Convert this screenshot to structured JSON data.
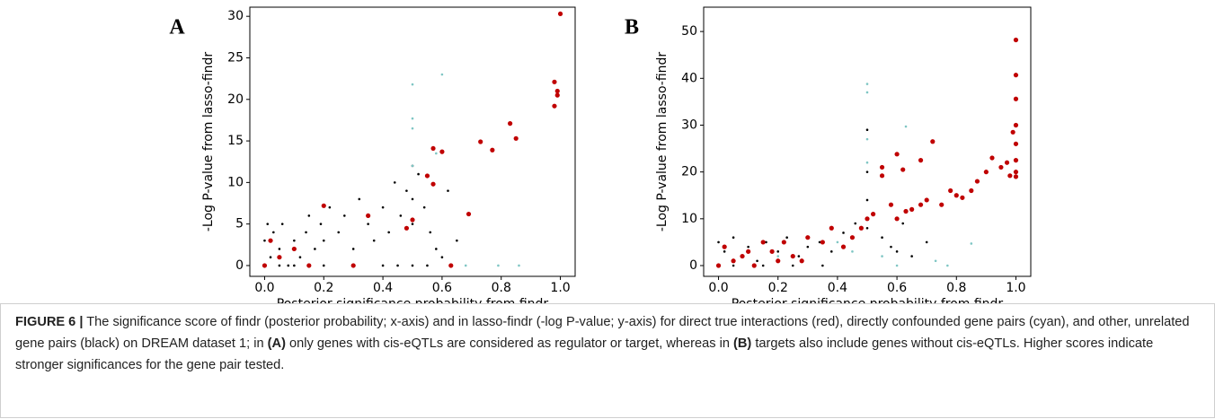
{
  "chart_data": [
    {
      "type": "scatter",
      "panel_label": "A",
      "x_label": "Posterior significance probability from findr",
      "y_label": "-Log P-value from lasso-findr",
      "xlim": [
        -0.05,
        1.05
      ],
      "ylim": [
        -1.3,
        31.1
      ],
      "xticks": [
        {
          "value": 0,
          "label": "0.0"
        },
        0.2,
        0.4,
        0.6,
        0.8,
        {
          "value": 1,
          "label": "1.0"
        }
      ],
      "yticks": [
        0,
        5,
        10,
        15,
        20,
        25,
        30
      ],
      "series": [
        {
          "color": "#000000",
          "x": [
            0,
            0,
            0.01,
            0.02,
            0.03,
            0.05,
            0.06,
            0.08,
            0.1,
            0.12,
            0.14,
            0.15,
            0.17,
            0.19,
            0.2,
            0.22,
            0.25,
            0.27,
            0.3,
            0.32,
            0.35,
            0.37,
            0.4,
            0.42,
            0.44,
            0.46,
            0.48,
            0.5,
            0.5,
            0.5,
            0.5,
            0.52,
            0.54,
            0.56,
            0.58,
            0.6,
            0.62,
            0.65,
            0.05,
            0.1,
            0.15,
            0.2,
            0.3,
            0.4,
            0.45,
            0.55
          ],
          "values": [
            0,
            3,
            5,
            1,
            4,
            2,
            5,
            0,
            3,
            1,
            4,
            6,
            2,
            5,
            3,
            7,
            4,
            6,
            2,
            8,
            5,
            3,
            7,
            4,
            10,
            6,
            9,
            12,
            8,
            5,
            0,
            11,
            7,
            4,
            2,
            1,
            9,
            3,
            0,
            0,
            0,
            0,
            0,
            0,
            0,
            0
          ]
        },
        {
          "color": "#7fc6c4",
          "x": [
            0.5,
            0.5,
            0.5,
            0.6,
            0.5,
            0.68,
            0.79,
            0.86,
            0.58,
            0.3
          ],
          "values": [
            21.8,
            17.7,
            16.5,
            23,
            12,
            0,
            0,
            0,
            13.5,
            0
          ]
        },
        {
          "color": "#c00000",
          "x": [
            0.98,
            0.99,
            0.99,
            1.0,
            0.98,
            0.83,
            0.85,
            0.73,
            0.77,
            0.57,
            0.6,
            0.55,
            0.57,
            0.69,
            0.48,
            0.5,
            0.2,
            0.35,
            0.05,
            0.1,
            0.0,
            0.15,
            0.3,
            0.63,
            0.02
          ],
          "values": [
            19.2,
            20.5,
            21,
            30.3,
            22.1,
            17.1,
            15.3,
            14.9,
            13.9,
            14.1,
            13.7,
            10.8,
            9.8,
            6.2,
            4.5,
            5.5,
            7.2,
            6,
            1,
            2,
            0,
            0,
            0,
            0,
            3
          ]
        }
      ]
    },
    {
      "type": "scatter",
      "panel_label": "B",
      "x_label": "Posterior significance probability from findr",
      "y_label": "-Log P-value from lasso-findr",
      "xlim": [
        -0.05,
        1.05
      ],
      "ylim": [
        -2.3,
        55.2
      ],
      "xticks": [
        {
          "value": 0,
          "label": "0.0"
        },
        0.2,
        0.4,
        0.6,
        0.8,
        {
          "value": 1,
          "label": "1.0"
        }
      ],
      "yticks": [
        0,
        10,
        20,
        30,
        40,
        50
      ],
      "series": [
        {
          "color": "#000000",
          "x": [
            0,
            0.02,
            0.05,
            0.08,
            0.1,
            0.13,
            0.16,
            0.2,
            0.23,
            0.27,
            0.3,
            0.34,
            0.38,
            0.42,
            0.46,
            0.5,
            0.5,
            0.5,
            0.5,
            0.52,
            0.55,
            0.58,
            0.6,
            0.62,
            0.65,
            0.7,
            0.05,
            0.15,
            0.25,
            0.35
          ],
          "values": [
            5,
            3,
            6,
            2,
            4,
            1,
            5,
            3,
            6,
            2,
            4,
            5,
            3,
            7,
            9,
            29,
            20,
            14,
            8,
            11,
            6,
            4,
            3,
            9,
            2,
            5,
            0,
            0,
            0,
            0
          ]
        },
        {
          "color": "#7fc6c4",
          "x": [
            0.5,
            0.5,
            0.5,
            0.5,
            0.63,
            0.85,
            0.73,
            0.77,
            0.55,
            0.6,
            0.45,
            0.4,
            0.2
          ],
          "values": [
            38.8,
            37,
            27,
            22,
            29.7,
            4.7,
            1,
            0,
            2,
            0,
            3,
            5,
            2
          ]
        },
        {
          "color": "#c00000",
          "x": [
            1,
            1,
            1,
            1,
            1,
            1,
            1,
            1,
            0.99,
            0.98,
            0.97,
            0.95,
            0.92,
            0.9,
            0.87,
            0.85,
            0.82,
            0.8,
            0.78,
            0.75,
            0.72,
            0.7,
            0.68,
            0.65,
            0.63,
            0.6,
            0.58,
            0.55,
            0.52,
            0.5,
            0.48,
            0.45,
            0.42,
            0.38,
            0.35,
            0.3,
            0.25,
            0.2,
            0.15,
            0.1,
            0.05,
            0,
            0.02,
            0.08,
            0.12,
            0.18,
            0.22,
            0.28,
            0.55,
            0.6,
            0.62,
            0.68
          ],
          "values": [
            48.2,
            40.7,
            35.6,
            30,
            26,
            22.5,
            20,
            19,
            28.5,
            19.2,
            22,
            21,
            23,
            20,
            18,
            16,
            14.5,
            15,
            16,
            13,
            26.5,
            14,
            13,
            12,
            11.6,
            10,
            13,
            21,
            11,
            10,
            8,
            6,
            4,
            8,
            5,
            6,
            2,
            1,
            5,
            3,
            1,
            0,
            4,
            2,
            0,
            3,
            5,
            1,
            19.2,
            23.8,
            20.5,
            22.5
          ]
        }
      ]
    }
  ],
  "caption": {
    "label": "FIGURE 6 |",
    "parts": [
      "The significance score of findr (posterior probability; x-axis) and in lasso-findr (-log P-value; y-axis) for direct true interactions (red), directly confounded gene pairs (cyan), and other, unrelated gene pairs (black) on DREAM dataset 1; in ",
      "(A)",
      " only genes with cis-eQTLs are considered as regulator or target, whereas in ",
      "(B)",
      " targets also include genes without cis-eQTLs. Higher scores indicate stronger significances for the gene pair tested."
    ]
  }
}
